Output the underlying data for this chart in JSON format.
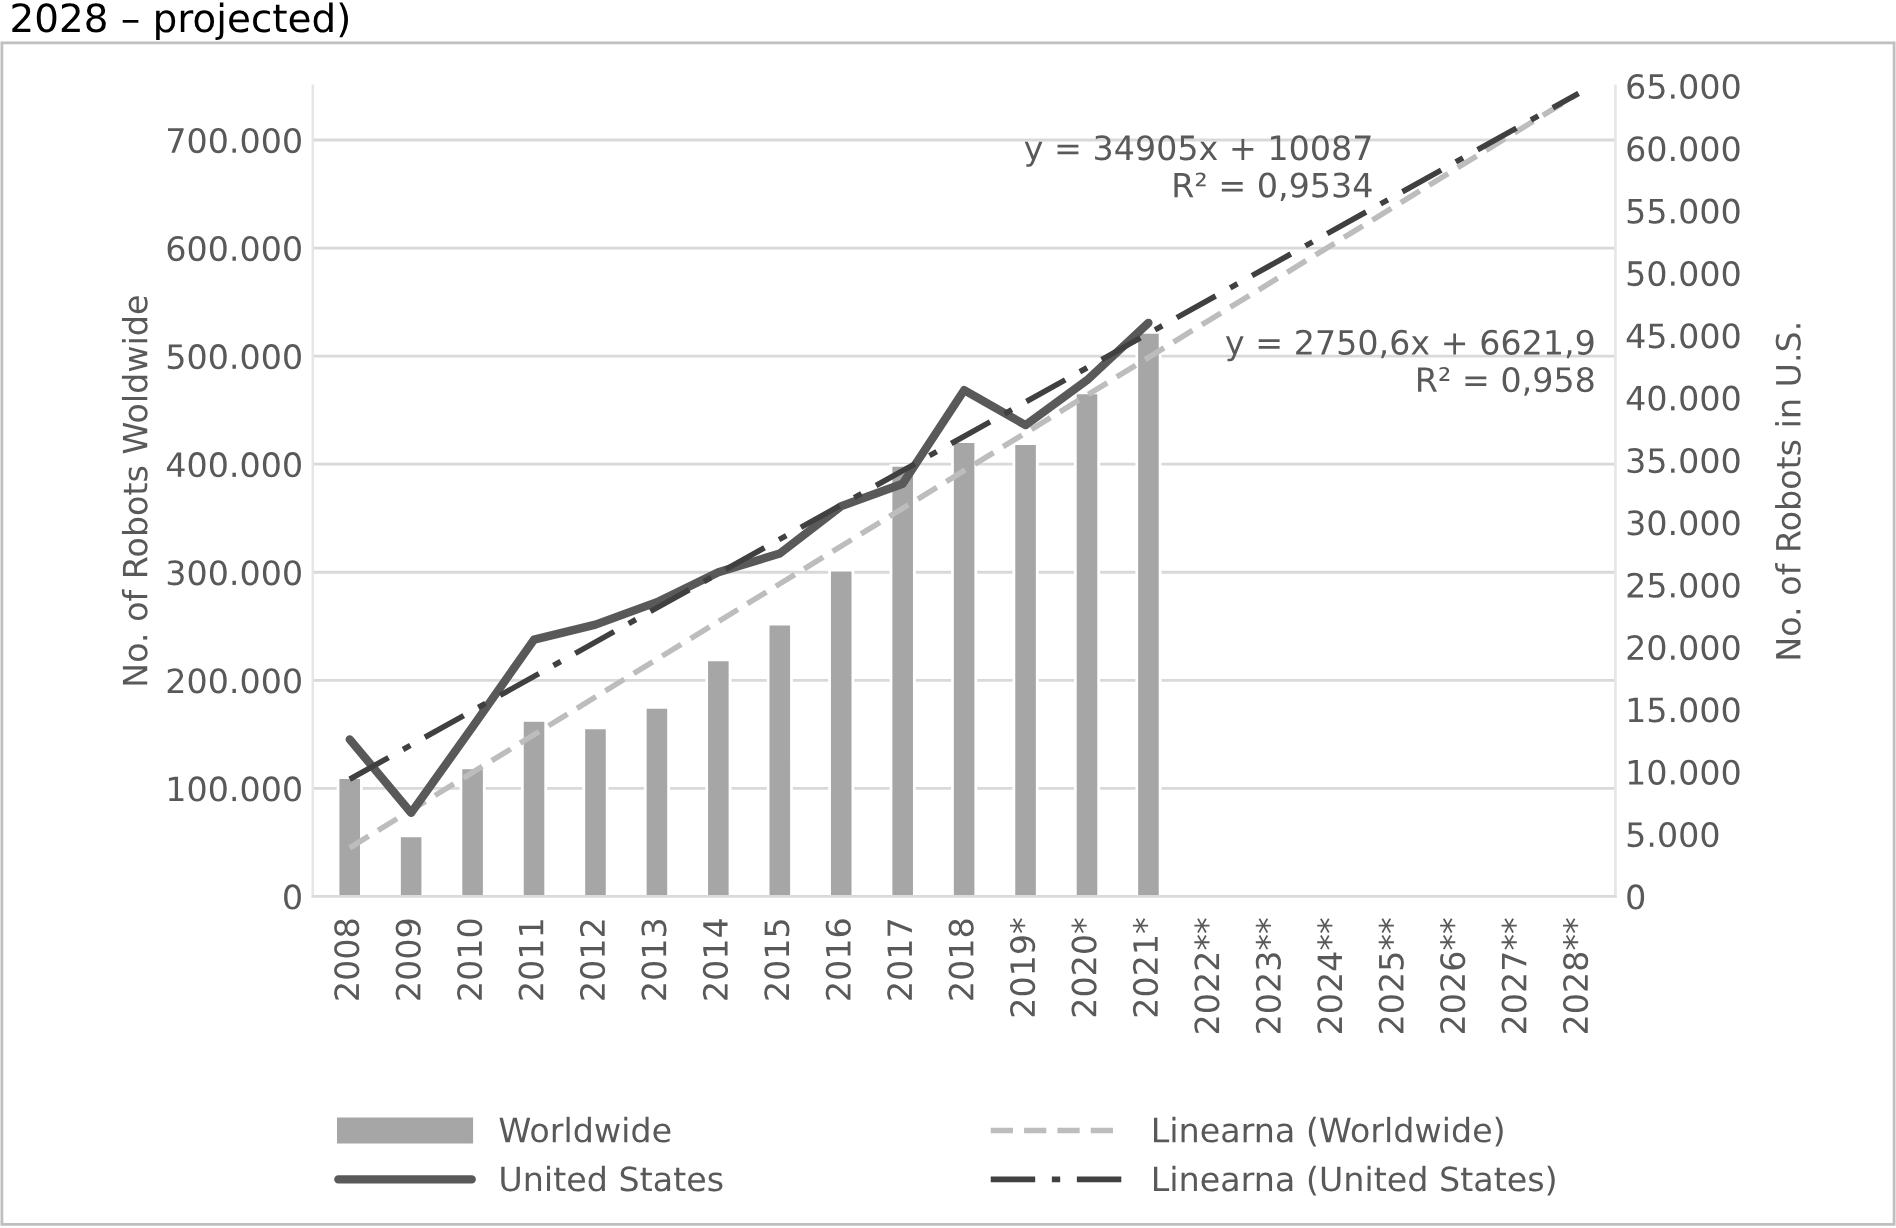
{
  "chart_data": {
    "type": "bar",
    "annotations": [
      "2028 – projected)",
      "y = 34905x + 10087\nR² = 0,9534",
      "y = 2750,6x + 6621,9\nR² = 0,958"
    ],
    "ylabel": "No. of Robots Woldwide",
    "y2label": "No. of Robots in U.S.",
    "categories": [
      "2008",
      "2009",
      "2010",
      "2011",
      "2012",
      "2013",
      "2014",
      "2015",
      "2016",
      "2017",
      "2018",
      "2019*",
      "2020*",
      "2021*",
      "2022**",
      "2023**",
      "2024**",
      "2025**",
      "2026**",
      "2027**",
      "2028**"
    ],
    "series": [
      {
        "name": "Worldwide",
        "color": "#a6a6a6",
        "values": [
          110000,
          56000,
          119000,
          163000,
          156000,
          175000,
          219000,
          252000,
          302000,
          399000,
          421000,
          419000,
          466000,
          522000,
          null,
          null,
          null,
          null,
          null,
          null,
          null
        ]
      },
      {
        "name": "United States",
        "type": "line",
        "axis": "y2",
        "color": "#595959",
        "line_style": "solid",
        "values": [
          12600,
          6700,
          13600,
          20600,
          21800,
          23600,
          26000,
          27500,
          31300,
          33100,
          40600,
          37800,
          41400,
          46000,
          null,
          null,
          null,
          null,
          null,
          null,
          null
        ]
      },
      {
        "name": "Linearna (Worldwide)",
        "type": "line",
        "color": "#bdbdbd",
        "line_style": "dashed",
        "values": [
          45000,
          null,
          null,
          null,
          null,
          null,
          null,
          null,
          null,
          null,
          null,
          null,
          null,
          null,
          null,
          null,
          null,
          null,
          null,
          null,
          743000
        ]
      },
      {
        "name": "Linearna (United States)",
        "type": "line",
        "axis": "y2",
        "color": "#404040",
        "line_style": "dashdot",
        "values": [
          9400,
          null,
          null,
          null,
          null,
          null,
          null,
          null,
          null,
          null,
          null,
          null,
          null,
          null,
          null,
          null,
          null,
          null,
          null,
          null,
          64400
        ]
      }
    ],
    "ylim": [
      0,
      750000
    ],
    "yticks": [
      0,
      {
        "value": 100000,
        "label": "100.000"
      },
      {
        "value": 200000,
        "label": "200.000"
      },
      {
        "value": 300000,
        "label": "300.000"
      },
      {
        "value": 400000,
        "label": "400.000"
      },
      {
        "value": 500000,
        "label": "500.000"
      },
      {
        "value": 600000,
        "label": "600.000"
      },
      {
        "value": 700000,
        "label": "700.000"
      }
    ],
    "y2lim": [
      0,
      65000
    ],
    "y2ticks": [
      0,
      {
        "value": 5000,
        "label": "5.000"
      },
      {
        "value": 10000,
        "label": "10.000"
      },
      {
        "value": 15000,
        "label": "15.000"
      },
      {
        "value": 20000,
        "label": "20.000"
      },
      {
        "value": 25000,
        "label": "25.000"
      },
      {
        "value": 30000,
        "label": "30.000"
      },
      {
        "value": 35000,
        "label": "35.000"
      },
      {
        "value": 40000,
        "label": "40.000"
      },
      {
        "value": 45000,
        "label": "45.000"
      },
      {
        "value": 50000,
        "label": "50.000"
      },
      {
        "value": 55000,
        "label": "55.000"
      },
      {
        "value": 60000,
        "label": "60.000"
      },
      {
        "value": 65000,
        "label": "65.000"
      }
    ],
    "grid": "y",
    "legend": "bottom"
  }
}
